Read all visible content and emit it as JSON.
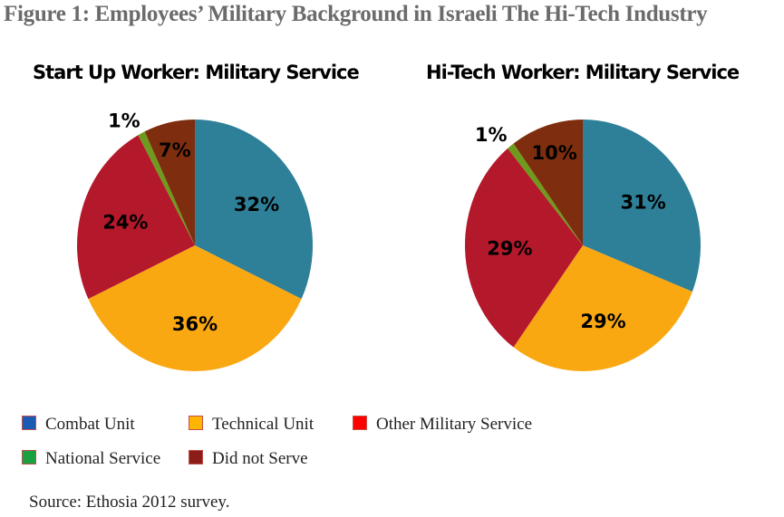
{
  "title": "Figure 1: Employees’ Military Background in Israeli The Hi-Tech Industry",
  "source": "Source:  Ethosia 2012 survey.",
  "legend": [
    {
      "label": "Combat Unit",
      "color": "#1a5cb4"
    },
    {
      "label": "Technical  Unit",
      "color": "#ffb400"
    },
    {
      "label": "Other Military Service",
      "color": "#ff0000"
    },
    {
      "label": "National Service",
      "color": "#19a040"
    },
    {
      "label": "Did not Serve",
      "color": "#8b1c17"
    }
  ],
  "chart_data": [
    {
      "type": "pie",
      "title": "Start Up Worker: Military Service",
      "categories": [
        "Combat Unit",
        "Technical  Unit",
        "Other Military Service",
        "National Service",
        "Did not Serve"
      ],
      "values": [
        32,
        36,
        24,
        1,
        7
      ],
      "labels": [
        "32%",
        "36%",
        "24%",
        "1%",
        "7%"
      ],
      "colors": [
        "#2e7f98",
        "#f9a812",
        "#b4182b",
        "#6e9a1e",
        "#7e2e0e"
      ]
    },
    {
      "type": "pie",
      "title": "Hi-Tech Worker: Military Service",
      "categories": [
        "Combat Unit",
        "Technical  Unit",
        "Other Military Service",
        "National Service",
        "Did not Serve"
      ],
      "values": [
        31,
        29,
        29,
        1,
        10
      ],
      "labels": [
        "31%",
        "29%",
        "29%",
        "1%",
        "10%"
      ],
      "colors": [
        "#2e7f98",
        "#f9a812",
        "#b4182b",
        "#6e9a1e",
        "#7e2e0e"
      ]
    }
  ]
}
